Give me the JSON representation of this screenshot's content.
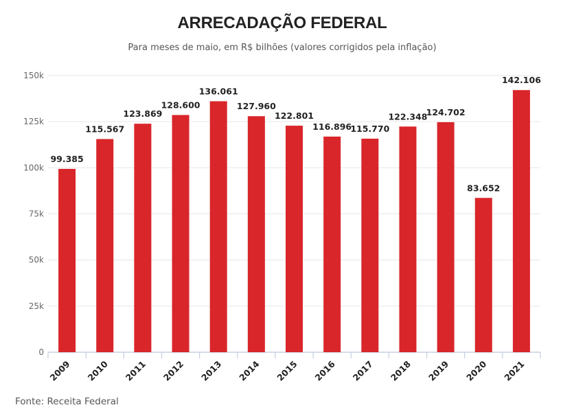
{
  "header": {
    "title": "ARRECADAÇÃO FEDERAL",
    "subtitle": "Para meses de maio, em R$ bilhões (valores corrigidos pela inflação)"
  },
  "footer": {
    "source": "Fonte: Receita Federal"
  },
  "colors": {
    "bar": "#d9262a",
    "grid": "#e6e6e6",
    "axis": "#c5cfe0"
  },
  "chart_data": {
    "type": "bar",
    "title": "ARRECADAÇÃO FEDERAL",
    "subtitle": "Para meses de maio, em R$ bilhões (valores corrigidos pela inflação)",
    "xlabel": "",
    "ylabel": "",
    "categories": [
      "2009",
      "2010",
      "2011",
      "2012",
      "2013",
      "2014",
      "2015",
      "2016",
      "2017",
      "2018",
      "2019",
      "2020",
      "2021"
    ],
    "values": [
      99385,
      115567,
      123869,
      128600,
      136061,
      127960,
      122801,
      116896,
      115770,
      122348,
      124702,
      83652,
      142106
    ],
    "data_labels": [
      "99.385",
      "115.567",
      "123.869",
      "128.600",
      "136.061",
      "127.960",
      "122.801",
      "116.896",
      "115.770",
      "122.348",
      "124.702",
      "83.652",
      "142.106"
    ],
    "ylim": [
      0,
      150000
    ],
    "yticks": [
      0,
      25000,
      50000,
      75000,
      100000,
      125000,
      150000
    ],
    "ytick_labels": [
      "0",
      "25k",
      "50k",
      "75k",
      "100k",
      "125k",
      "150k"
    ],
    "grid": true,
    "legend": "none"
  }
}
